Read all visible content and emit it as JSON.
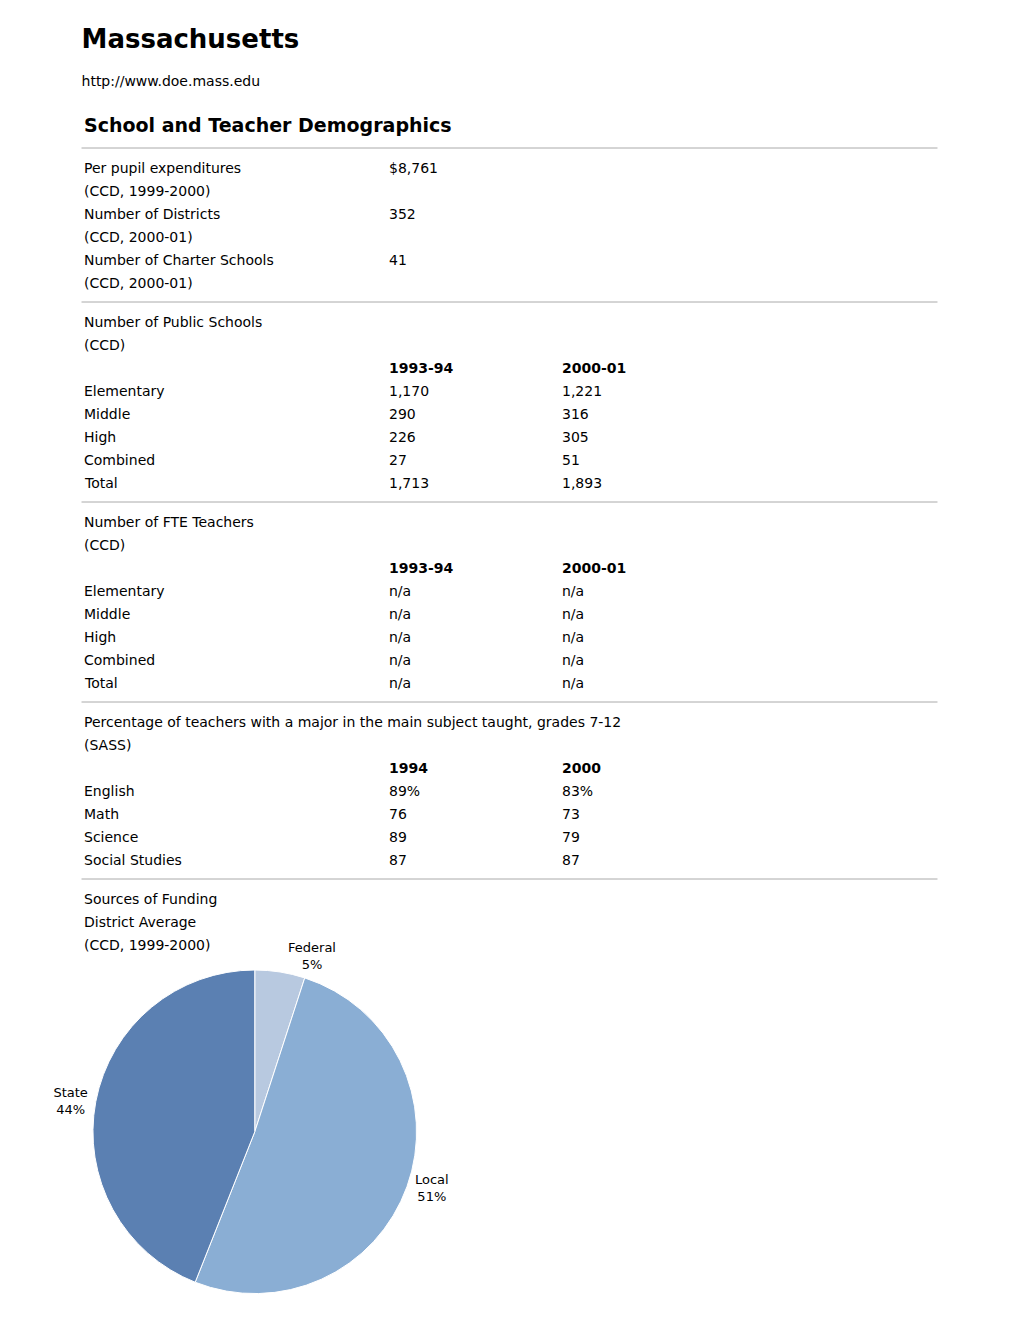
{
  "chart_data": {
    "type": "pie",
    "title": "Massachusetts",
    "subtitle": "http://www.doe.mass.edu",
    "categories": [
      "Federal",
      "Local",
      "State"
    ],
    "values": [
      5,
      51,
      44
    ],
    "value_labels": [
      "5%",
      "51%",
      "44%"
    ],
    "colors": [
      "#b8c9e0",
      "#8aaed4",
      "#5b80b2"
    ],
    "data_labels": true,
    "annotations": [
      [
        [
          "School and Teacher Demographics"
        ]
      ],
      [
        [
          "Per pupil expenditures",
          "$8,761"
        ],
        [
          "(CCD, 1999-2000)"
        ],
        [
          "Number of Districts",
          "352"
        ],
        [
          "(CCD, 2000-01)"
        ],
        [
          "Number of Charter Schools",
          "41"
        ],
        [
          "(CCD, 2000-01)"
        ]
      ],
      [
        [
          "Number of Public Schools"
        ],
        [
          "(CCD)"
        ],
        [
          null,
          "1993-94",
          "2000-01"
        ],
        [
          "Elementary",
          "1,170",
          "1,221"
        ],
        [
          "Middle",
          "290",
          "316"
        ],
        [
          "High",
          "226",
          "305"
        ],
        [
          "Combined",
          "27",
          "51"
        ],
        [
          "Total",
          "1,713",
          "1,893"
        ]
      ],
      [
        [
          "Number of FTE Teachers"
        ],
        [
          "(CCD)"
        ],
        [
          null,
          "1993-94",
          "2000-01"
        ],
        [
          "Elementary",
          "n/a",
          "n/a"
        ],
        [
          "Middle",
          "n/a",
          "n/a"
        ],
        [
          "High",
          "n/a",
          "n/a"
        ],
        [
          "Combined",
          "n/a",
          "n/a"
        ],
        [
          "Total",
          "n/a",
          "n/a"
        ]
      ],
      [
        [
          "Percentage of teachers with a major in the main subject taught, grades 7-12"
        ],
        [
          "(SASS)"
        ],
        [
          null,
          "1994",
          "2000"
        ],
        [
          "English",
          "89%",
          "83%"
        ],
        [
          "Math",
          "76",
          "73"
        ],
        [
          "Science",
          "89",
          "79"
        ],
        [
          "Social Studies",
          "87",
          "87"
        ]
      ],
      [
        [
          "Sources of Funding"
        ],
        [
          "District Average"
        ],
        [
          "(CCD, 1999-2000)"
        ]
      ]
    ]
  }
}
